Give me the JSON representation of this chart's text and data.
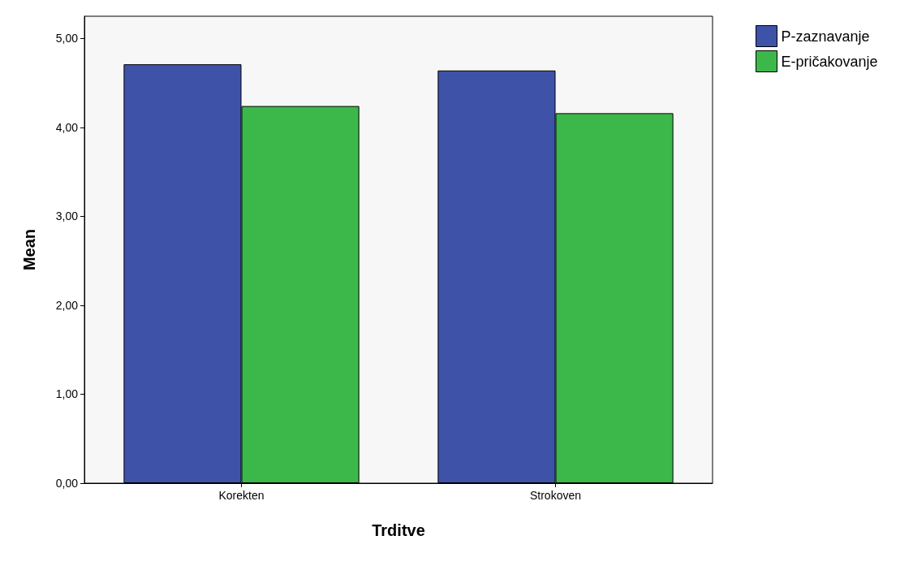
{
  "chart_data": {
    "type": "bar",
    "xlabel": "Trditve",
    "ylabel": "Mean",
    "categories": [
      "Korekten",
      "Strokoven"
    ],
    "series": [
      {
        "name": "P-zaznavanje",
        "color": "#3e53a7",
        "values": [
          4.71,
          4.64
        ]
      },
      {
        "name": "E-pričakovanje",
        "color": "#3cb84b",
        "values": [
          4.24,
          4.16
        ]
      }
    ],
    "ylim": [
      0,
      5.25
    ],
    "yticks": [
      {
        "value": 0,
        "label": "0,00"
      },
      {
        "value": 1,
        "label": "1,00"
      },
      {
        "value": 2,
        "label": "2,00"
      },
      {
        "value": 3,
        "label": "3,00"
      },
      {
        "value": 4,
        "label": "4,00"
      },
      {
        "value": 5,
        "label": "5,00"
      }
    ],
    "grid": false,
    "legend": "top right"
  }
}
